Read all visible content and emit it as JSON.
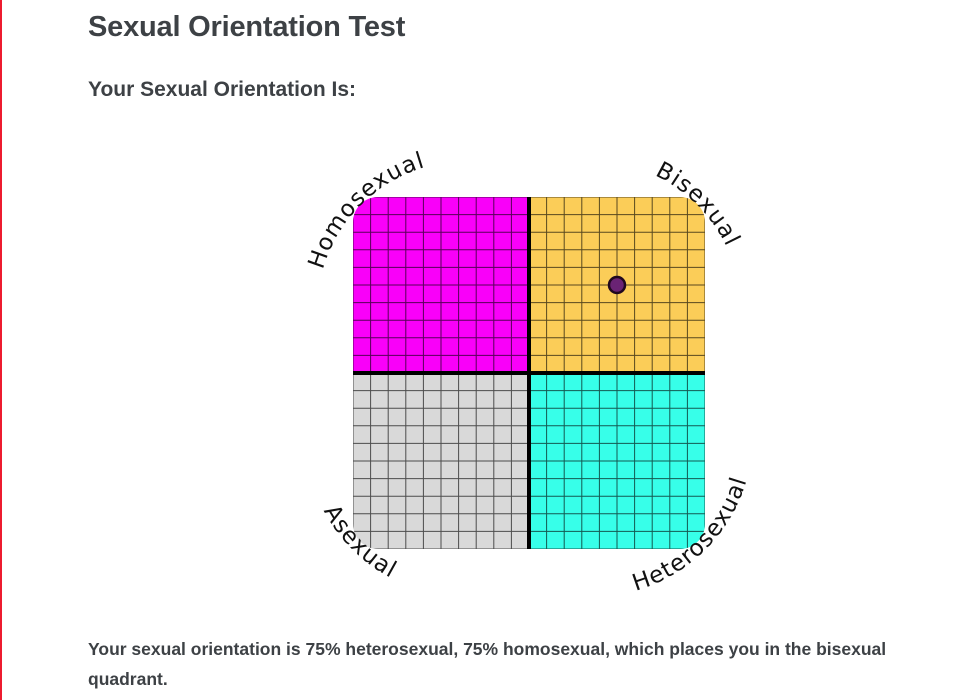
{
  "page": {
    "title": "Sexual Orientation Test",
    "subtitle": "Your Sexual Orientation Is:",
    "result_text": "Your sexual orientation is 75% heterosexual, 75% homosexual, which places you in the bisexual quadrant.",
    "text_color": "#3d4145",
    "accent_line_color": "#ed1b2f"
  },
  "chart_data": {
    "type": "quadrant-scatter",
    "quadrants": [
      {
        "position": "top-left",
        "label": "Homosexual",
        "color": "#f900f9"
      },
      {
        "position": "top-right",
        "label": "Bisexual",
        "color": "#fbcd58"
      },
      {
        "position": "bottom-left",
        "label": "Asexual",
        "color": "#d9d9d9"
      },
      {
        "position": "bottom-right",
        "label": "Heterosexual",
        "color": "#37ffe9"
      }
    ],
    "grid": {
      "cells_per_quadrant": 10,
      "line_color": "#000000",
      "line_opacity": 0.65,
      "axis_color": "#000000"
    },
    "point": {
      "x_pct_heterosexual": 75,
      "y_pct_homosexual": 75,
      "quadrant": "bisexual",
      "fill": "#6a2374",
      "stroke": "#20081f"
    },
    "label_color": "#111111"
  }
}
